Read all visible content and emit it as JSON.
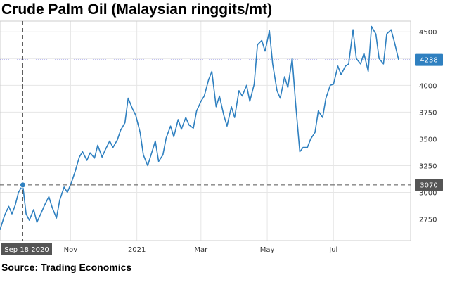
{
  "chart_data": {
    "type": "line",
    "title": "Crude Palm Oil (Malaysian ringgits/mt)",
    "source": "Source: Trading Economics",
    "xlabel": "",
    "ylabel": "",
    "ylim": [
      2550,
      4600
    ],
    "xlim": [
      "2020-08-28",
      "2021-09-10"
    ],
    "y_ticks": [
      2750,
      3000,
      3250,
      3500,
      3750,
      4000,
      4250,
      4500
    ],
    "y_tick_labels": [
      "2750",
      "3000",
      "3250",
      "3500",
      "3750",
      "4000",
      "4250",
      "4500"
    ],
    "x_ticks": [
      {
        "date": "2020-11-01",
        "label": "Nov"
      },
      {
        "date": "2021-01-01",
        "label": "2021"
      },
      {
        "date": "2021-03-01",
        "label": "Mar"
      },
      {
        "date": "2021-05-01",
        "label": "May"
      },
      {
        "date": "2021-07-01",
        "label": "Jul"
      }
    ],
    "grid": true,
    "legend": "none",
    "line_color": "#2f80c0",
    "last_value": {
      "value": 4238,
      "label": "4238",
      "color": "#2f80c0"
    },
    "crosshair": {
      "date": "2020-09-18",
      "value": 3070,
      "date_label": "Sep 18 2020",
      "value_label": "3070",
      "color": "#555555"
    },
    "series": [
      {
        "x": [
          "2020-08-28",
          "2020-09-01",
          "2020-09-05",
          "2020-09-08",
          "2020-09-11",
          "2020-09-14",
          "2020-09-18",
          "2020-09-21",
          "2020-09-24",
          "2020-09-28",
          "2020-10-01",
          "2020-10-05",
          "2020-10-08",
          "2020-10-12",
          "2020-10-15",
          "2020-10-19",
          "2020-10-22",
          "2020-10-26",
          "2020-10-29",
          "2020-11-02",
          "2020-11-05",
          "2020-11-09",
          "2020-11-12",
          "2020-11-16",
          "2020-11-19",
          "2020-11-23",
          "2020-11-26",
          "2020-11-30",
          "2020-12-03",
          "2020-12-07",
          "2020-12-10",
          "2020-12-14",
          "2020-12-17",
          "2020-12-21",
          "2020-12-24",
          "2020-12-28",
          "2020-12-31",
          "2021-01-04",
          "2021-01-07",
          "2021-01-11",
          "2021-01-14",
          "2021-01-18",
          "2021-01-21",
          "2021-01-25",
          "2021-01-28",
          "2021-02-01",
          "2021-02-04",
          "2021-02-08",
          "2021-02-11",
          "2021-02-15",
          "2021-02-18",
          "2021-02-22",
          "2021-02-25",
          "2021-03-01",
          "2021-03-04",
          "2021-03-08",
          "2021-03-11",
          "2021-03-15",
          "2021-03-18",
          "2021-03-22",
          "2021-03-25",
          "2021-03-29",
          "2021-04-01",
          "2021-04-05",
          "2021-04-08",
          "2021-04-12",
          "2021-04-15",
          "2021-04-19",
          "2021-04-22",
          "2021-04-26",
          "2021-04-29",
          "2021-05-03",
          "2021-05-06",
          "2021-05-10",
          "2021-05-13",
          "2021-05-17",
          "2021-05-20",
          "2021-05-24",
          "2021-05-27",
          "2021-05-31",
          "2021-06-03",
          "2021-06-07",
          "2021-06-10",
          "2021-06-14",
          "2021-06-17",
          "2021-06-21",
          "2021-06-24",
          "2021-06-28",
          "2021-07-01",
          "2021-07-05",
          "2021-07-08",
          "2021-07-12",
          "2021-07-15",
          "2021-07-19",
          "2021-07-22",
          "2021-07-26",
          "2021-07-29",
          "2021-08-02",
          "2021-08-05",
          "2021-08-09",
          "2021-08-12",
          "2021-08-16",
          "2021-08-19",
          "2021-08-23",
          "2021-08-26",
          "2021-08-30"
        ],
        "values": [
          2650,
          2780,
          2870,
          2800,
          2880,
          3000,
          3070,
          2800,
          2740,
          2840,
          2720,
          2810,
          2880,
          2960,
          2860,
          2760,
          2930,
          3050,
          3000,
          3100,
          3190,
          3330,
          3380,
          3300,
          3370,
          3320,
          3440,
          3330,
          3400,
          3480,
          3420,
          3490,
          3580,
          3650,
          3880,
          3780,
          3720,
          3560,
          3350,
          3250,
          3350,
          3480,
          3290,
          3350,
          3510,
          3620,
          3520,
          3680,
          3590,
          3700,
          3630,
          3600,
          3760,
          3850,
          3900,
          4050,
          4130,
          3800,
          3900,
          3720,
          3620,
          3800,
          3700,
          3950,
          3900,
          4000,
          3850,
          4010,
          4380,
          4420,
          4320,
          4510,
          4200,
          3950,
          3880,
          4080,
          3980,
          4250,
          3850,
          3380,
          3420,
          3420,
          3500,
          3560,
          3760,
          3700,
          3880,
          4000,
          4010,
          4180,
          4100,
          4180,
          4200,
          4520,
          4250,
          4200,
          4300,
          4130,
          4550,
          4480,
          4250,
          4200,
          4480,
          4520,
          4410,
          4238
        ]
      }
    ]
  }
}
